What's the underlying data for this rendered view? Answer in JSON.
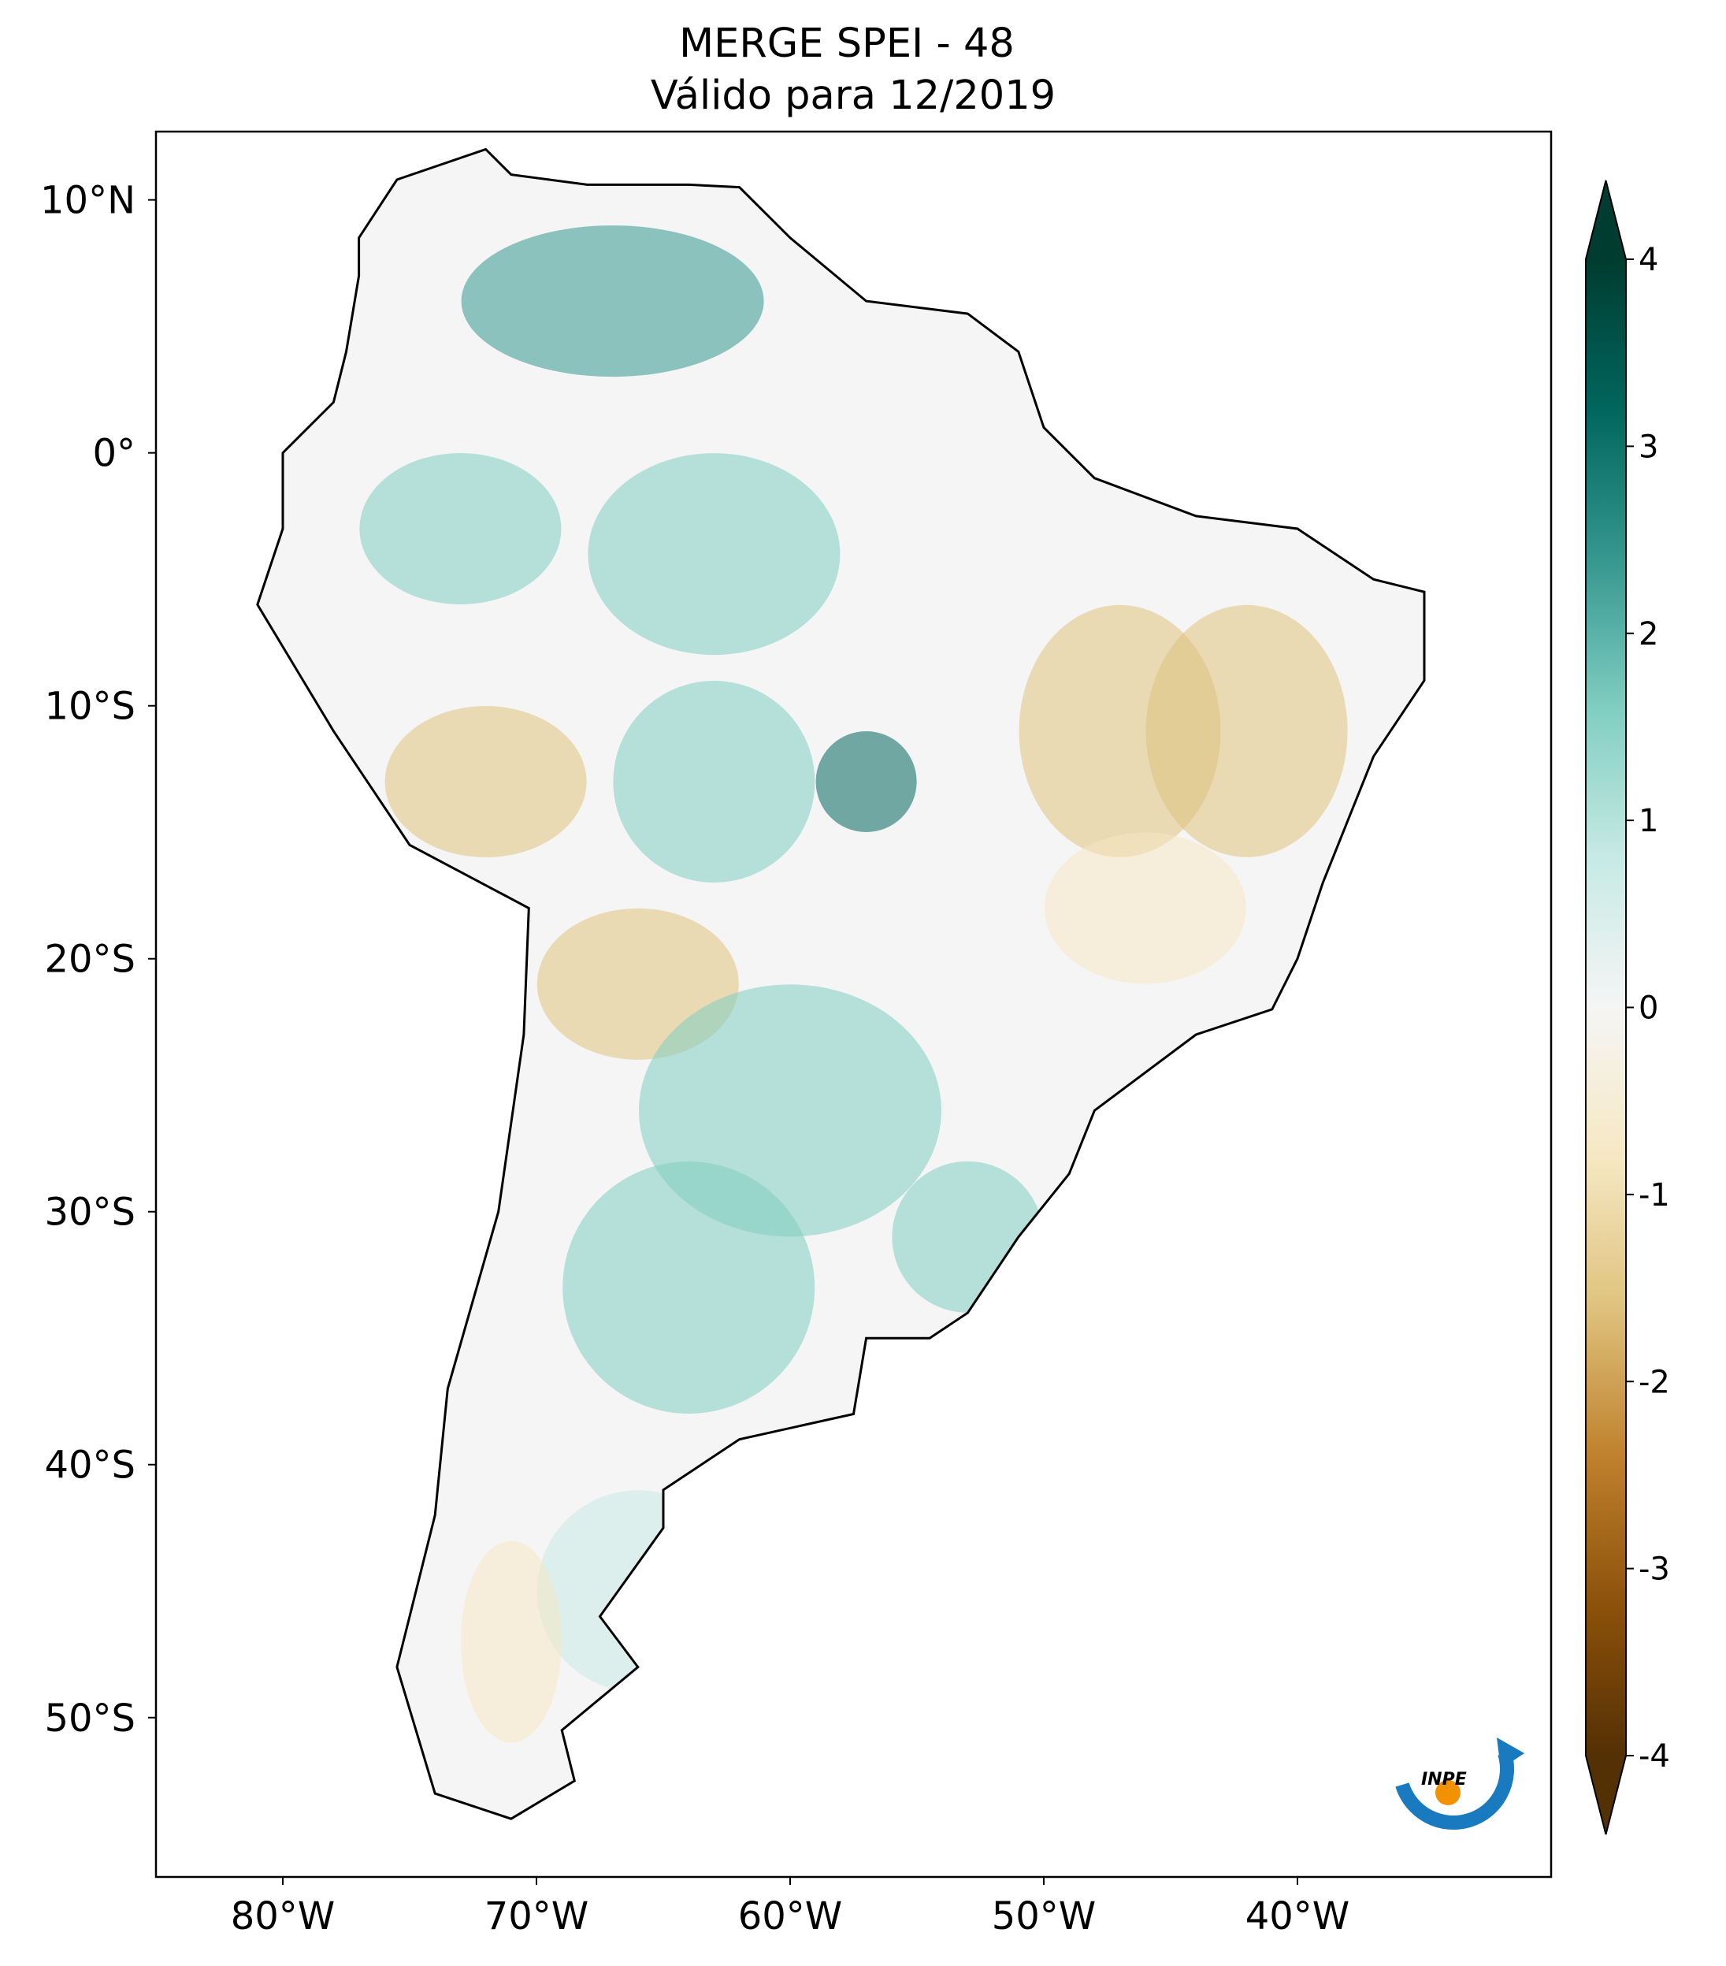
{
  "title": [
    "MERGE   SPEI - 48",
    "Válido para 12/2019"
  ],
  "map": {
    "xlim": [
      -85,
      -30
    ],
    "ylim": [
      -56.3,
      12.7
    ],
    "xticks": [
      {
        "value": -80,
        "label": "80°W"
      },
      {
        "value": -70,
        "label": "70°W"
      },
      {
        "value": -60,
        "label": "60°W"
      },
      {
        "value": -50,
        "label": "50°W"
      },
      {
        "value": -40,
        "label": "40°W"
      }
    ],
    "yticks": [
      {
        "value": 10,
        "label": "10°N"
      },
      {
        "value": 0,
        "label": "0°"
      },
      {
        "value": -10,
        "label": "10°S"
      },
      {
        "value": -20,
        "label": "20°S"
      },
      {
        "value": -30,
        "label": "30°S"
      },
      {
        "value": -40,
        "label": "40°S"
      },
      {
        "value": -50,
        "label": "50°S"
      }
    ]
  },
  "colorbar": {
    "lim": [
      -4,
      4
    ],
    "ticks": [
      -4,
      -3,
      -2,
      -1,
      0,
      1,
      2,
      3,
      4
    ],
    "colors": [
      "#543005",
      "#8c510a",
      "#bf812d",
      "#dfc27d",
      "#f6e8c3",
      "#f5f5f5",
      "#c7eae5",
      "#80cdc1",
      "#35978f",
      "#01665e",
      "#003c30"
    ]
  },
  "logo": "INPE"
}
